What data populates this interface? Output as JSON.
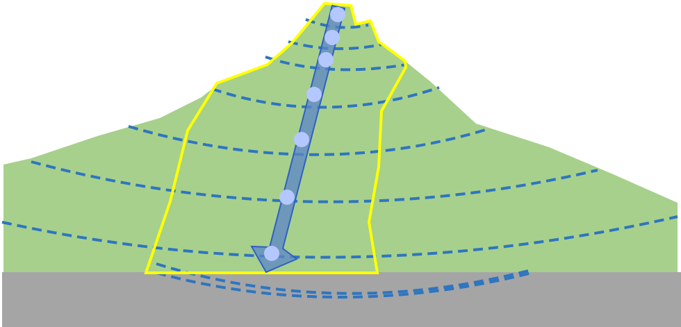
{
  "diagram": {
    "type": "cross-section",
    "colors": {
      "background": "#ffffff",
      "hillside": "#a7d08c",
      "ground": "#a5a5a5",
      "contour_lines": "#2e75c0",
      "boundary_outline": "#ffff00",
      "flow_arrow_fill": "#5b86c9",
      "flow_arrow_stroke": "#2f5fc4",
      "particles": "#b4c7ff"
    },
    "contour_line_count": 9,
    "particle_count": 7
  }
}
